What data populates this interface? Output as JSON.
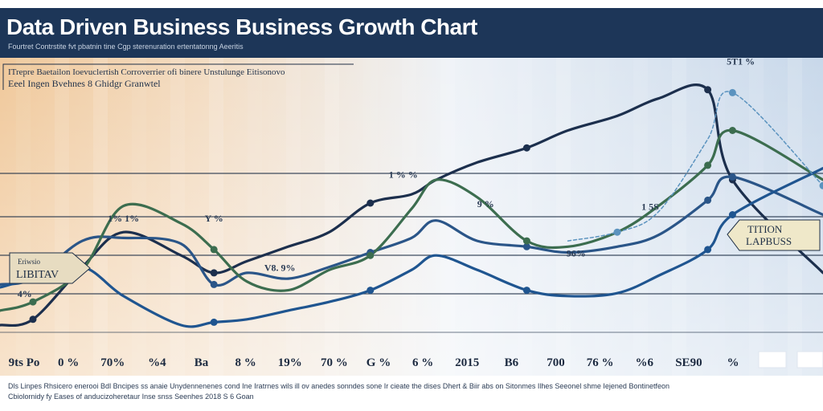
{
  "header": {
    "title": "Data Driven Business Business  Growth Chart",
    "subtitle": "Fourtret Contrstite fvt pbatnin tine Cgp sterenuration ertentatonng Aeeritis"
  },
  "chart_data": {
    "type": "line",
    "title": "Data Driven Business Business  Growth Chart",
    "subtitle": "Fourtret Contrstite fvt pbatnin tine Cgp sterenuration ertentatonng Aeeritis",
    "legend": {
      "placement": "top-left",
      "line1": "ITrepre Baetailon Ioevuclertish Corroverrier ofi binere Unstulunge Eitisonovo",
      "line2": "Eeel Ingen Bvehnes 8 Ghidgr Granwtel"
    },
    "x_tick_labels": [
      "9ts Po",
      "0 %",
      "70%",
      "%4",
      "Ba",
      "8 %",
      "19%",
      "70 %",
      "G %",
      "6 %",
      "2015",
      "B6",
      "700",
      "76 %",
      "%6",
      "SE90",
      "%"
    ],
    "y_range": [
      0,
      100
    ],
    "grid": true,
    "x": [
      0,
      4,
      10,
      15,
      22,
      26,
      30,
      35,
      40,
      45,
      50,
      53,
      58,
      64,
      69,
      75,
      80,
      86,
      89,
      100
    ],
    "series": [
      {
        "color": "#1c2f4d",
        "values": [
          8,
          10,
          28,
          40,
          32,
          26,
          30,
          35,
          40,
          50,
          53,
          58,
          64,
          69,
          75,
          80,
          86,
          89,
          58,
          26
        ]
      },
      {
        "color": "#2a5588",
        "values": [
          22,
          24,
          37,
          38,
          36,
          22,
          26,
          24,
          28,
          33,
          38,
          44,
          37,
          35,
          33,
          35,
          39,
          51,
          59,
          46
        ]
      },
      {
        "color": "#3c6d4f",
        "values": [
          13,
          16,
          27,
          49,
          43,
          34,
          23,
          20,
          27,
          32,
          48,
          58,
          52,
          37,
          35,
          40,
          49,
          63,
          75,
          58
        ]
      },
      {
        "color": "#1f5590",
        "values": [
          21,
          24,
          28,
          18,
          8,
          9,
          10,
          13,
          16,
          20,
          27,
          32,
          27,
          20,
          18,
          19,
          25,
          34,
          46,
          62
        ]
      },
      {
        "color": "#5b93bf",
        "values": [
          null,
          null,
          null,
          null,
          null,
          null,
          null,
          null,
          null,
          null,
          null,
          null,
          null,
          null,
          37,
          40,
          47,
          72,
          88,
          56
        ]
      }
    ],
    "annotations": [
      {
        "text": "1% 1%",
        "x": 15,
        "y": 42,
        "color": "#2b3c55"
      },
      {
        "text": "Y %",
        "x": 26,
        "y": 42,
        "color": "#2b3c55"
      },
      {
        "text": "V8. 9%",
        "x": 34,
        "y": 25,
        "color": "#2b3c55"
      },
      {
        "text": "1 % %",
        "x": 49,
        "y": 57,
        "color": "#2b3c55"
      },
      {
        "text": "9 %",
        "x": 59,
        "y": 47,
        "color": "#2b3c55"
      },
      {
        "text": "96%",
        "x": 70,
        "y": 30,
        "color": "#2b3c55"
      },
      {
        "text": "1 5S",
        "x": 79,
        "y": 46,
        "color": "#2b3c55"
      },
      {
        "text": "5T1 %",
        "x": 90,
        "y": 96,
        "color": "#2b3c55"
      },
      {
        "text": "4%",
        "x": 3,
        "y": 16,
        "color": "#2b3c55"
      }
    ],
    "callouts": [
      {
        "line1": "Eriwsio",
        "line2": "LIBITAV",
        "x": 4,
        "y": 30
      },
      {
        "line1": "TITION",
        "line2": "LAPBUSS",
        "x": 94,
        "y": 44
      }
    ],
    "colors": {
      "background_left": "#f0c89a",
      "background_mid": "#eef2f7",
      "background_right": "#c8d8ea",
      "header": "#1d3658",
      "grid": "#1f2f46"
    }
  },
  "footer": {
    "line1": "Dls Linpes Rhsicero enerooi Bdl Bncipes ss anaie Unydennenenes cond Ine Iratrnes wils ill ov anedes sonndes sone Ir cieate the dises Dhert & Biir abs on Sitonmes Ilhes Seeonel shme Iejened Bontinetfeon",
    "line2": "Cbiolornidy fy Eases of anducizoheretaur Inse snss Seenhes 2018 S 6 Goan"
  }
}
